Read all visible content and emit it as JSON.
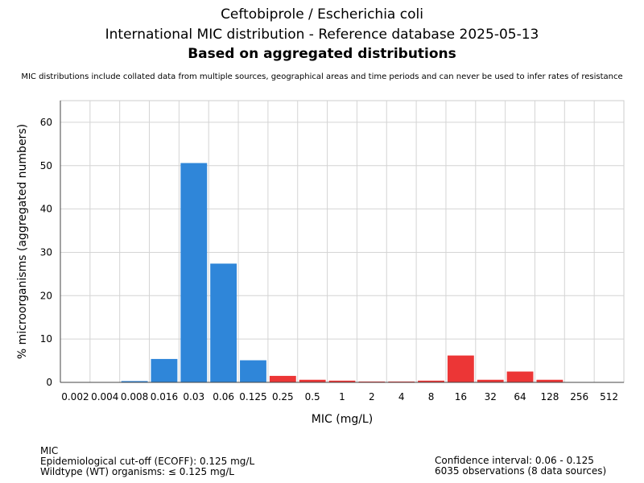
{
  "header": {
    "title1": "Ceftobiprole / Escherichia coli",
    "title2": "International MIC distribution - Reference database 2025-05-13",
    "title3": "Based on aggregated distributions",
    "subtitle": "MIC distributions include collated data from multiple sources, geographical areas and time periods and can never be used to infer rates of resistance"
  },
  "chart_data": {
    "type": "bar",
    "xlabel": "MIC (mg/L)",
    "ylabel": "% microorganisms (aggregated numbers)",
    "ylim": [
      0,
      65
    ],
    "yticks": [
      0,
      10,
      20,
      30,
      40,
      50,
      60
    ],
    "categories": [
      "0.002",
      "0.004",
      "0.008",
      "0.016",
      "0.03",
      "0.06",
      "0.125",
      "0.25",
      "0.5",
      "1",
      "2",
      "4",
      "8",
      "16",
      "32",
      "64",
      "128",
      "256",
      "512"
    ],
    "values": [
      0,
      0,
      0.3,
      5.4,
      50.6,
      27.4,
      5.1,
      1.5,
      0.6,
      0.4,
      0.2,
      0.2,
      0.4,
      6.2,
      0.6,
      2.5,
      0.6,
      0,
      0
    ],
    "ecoff": "0.125",
    "colors": {
      "wildtype": "#2f86d9",
      "non_wildtype": "#ec3636"
    },
    "grid": true
  },
  "footer": {
    "left": [
      "MIC",
      "Epidemiological cut-off (ECOFF): 0.125 mg/L",
      "Wildtype (WT) organisms: ≤ 0.125 mg/L"
    ],
    "right": [
      "Confidence interval: 0.06 - 0.125",
      "6035 observations (8 data sources)"
    ]
  }
}
